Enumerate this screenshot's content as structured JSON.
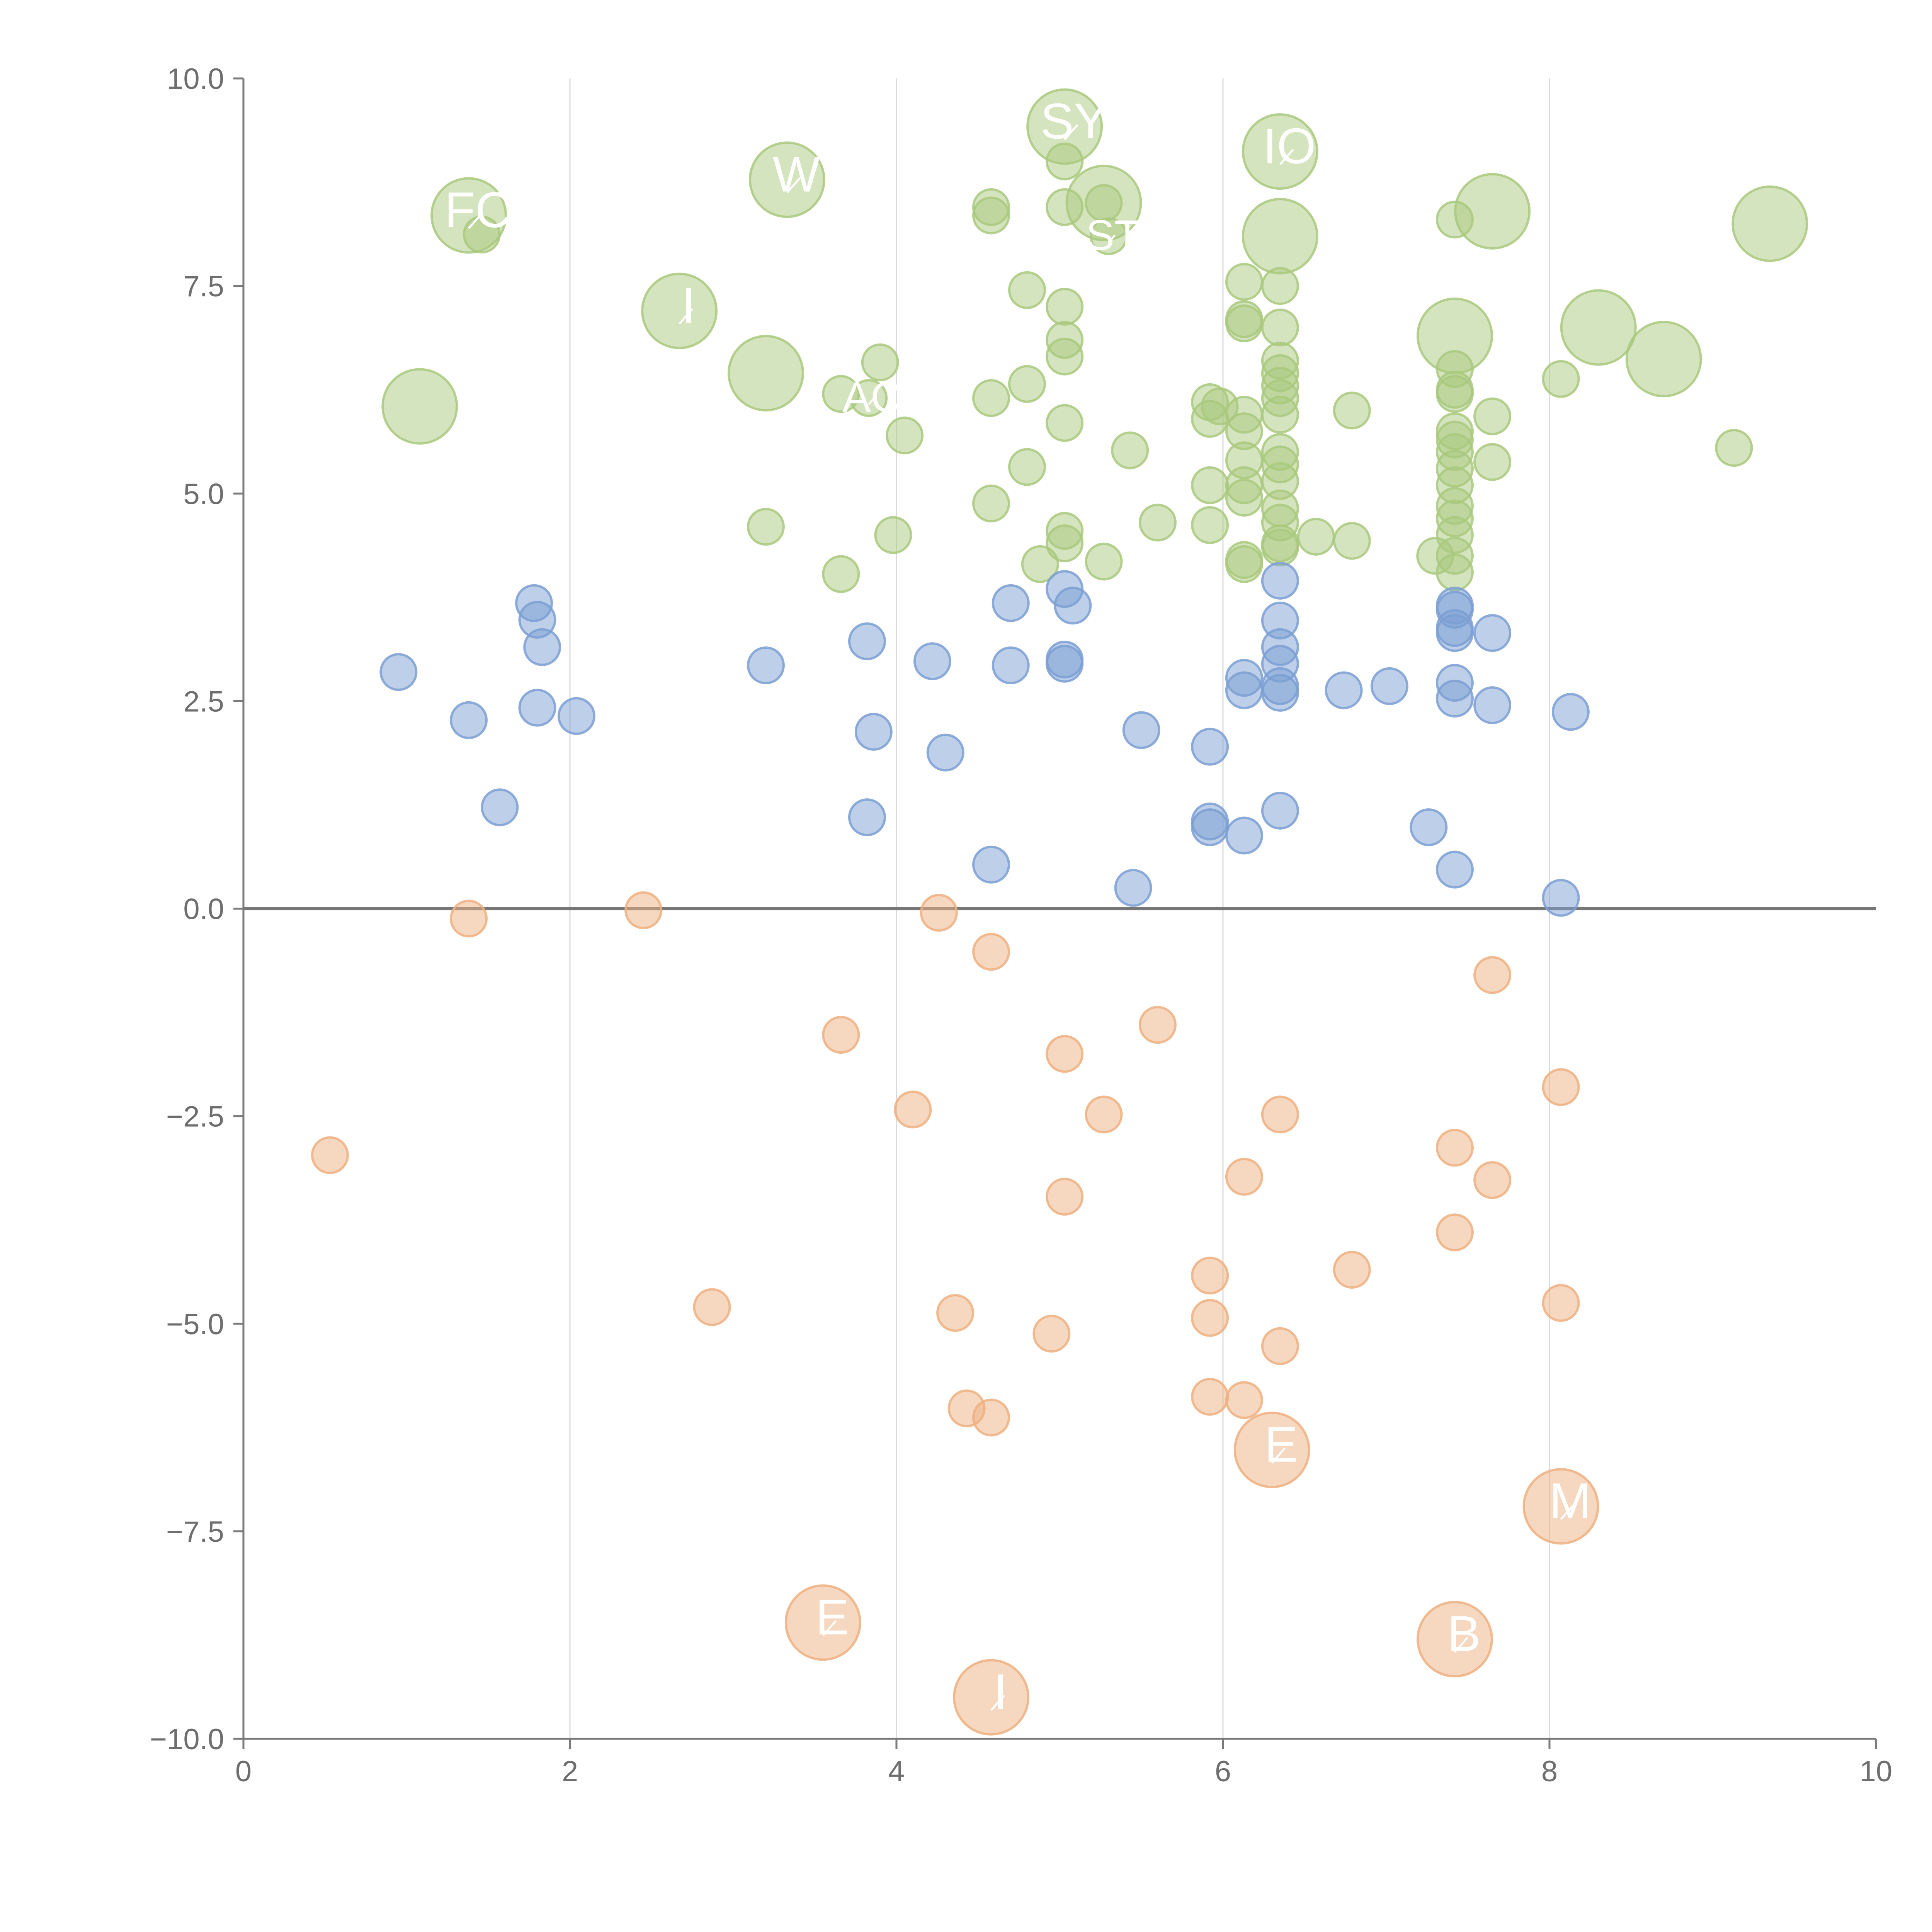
{
  "chart_data": {
    "type": "scatter",
    "title": "",
    "xlabel": "",
    "ylabel": "",
    "xlim": [
      0,
      10
    ],
    "ylim": [
      -10,
      10
    ],
    "xticks": [
      "0",
      "2",
      "4",
      "6",
      "8",
      "10"
    ],
    "yticks": [
      "−10.0",
      "−7.5",
      "−5.0",
      "−2.5",
      "0.0",
      "2.5",
      "5.0",
      "7.5",
      "10.0"
    ],
    "grid": "vertical lines at x = 2, 4, 6, 8",
    "reference_line": 0,
    "colors": {
      "high": "#a9c97e",
      "mid": "#7b9fd4",
      "low": "#eeb080"
    },
    "series": [
      {
        "group": "high",
        "color": "#a9c97e",
        "points": [
          [
            1.38,
            8.35,
            "l",
            "FC"
          ],
          [
            1.46,
            8.12,
            "s",
            ""
          ],
          [
            3.33,
            8.78,
            "l",
            "W"
          ],
          [
            2.67,
            7.2,
            "l",
            "I"
          ],
          [
            1.08,
            6.05,
            "l",
            ""
          ],
          [
            3.2,
            6.45,
            "l",
            ""
          ],
          [
            5.03,
            9.42,
            "l",
            "SY"
          ],
          [
            5.03,
            9.0,
            "s",
            ""
          ],
          [
            5.27,
            8.5,
            "l",
            ""
          ],
          [
            5.27,
            8.5,
            "s",
            ""
          ],
          [
            5.03,
            8.45,
            "s",
            ""
          ],
          [
            4.58,
            8.45,
            "s",
            ""
          ],
          [
            4.58,
            8.35,
            "s",
            ""
          ],
          [
            6.35,
            9.12,
            "l",
            "IO"
          ],
          [
            6.35,
            8.1,
            "l",
            ""
          ],
          [
            5.3,
            8.1,
            "s",
            "ST"
          ],
          [
            7.65,
            8.4,
            "l",
            ""
          ],
          [
            7.42,
            8.3,
            "s",
            ""
          ],
          [
            9.35,
            8.25,
            "l",
            ""
          ],
          [
            7.42,
            6.9,
            "l",
            ""
          ],
          [
            8.3,
            7.0,
            "l",
            ""
          ],
          [
            8.7,
            6.62,
            "l",
            ""
          ],
          [
            4.8,
            7.45,
            "s",
            ""
          ],
          [
            5.03,
            7.25,
            "s",
            ""
          ],
          [
            5.03,
            6.85,
            "s",
            ""
          ],
          [
            5.03,
            6.65,
            "s",
            ""
          ],
          [
            3.9,
            6.58,
            "s",
            ""
          ],
          [
            3.66,
            6.2,
            "s",
            ""
          ],
          [
            3.83,
            6.15,
            "s",
            "AO"
          ],
          [
            4.05,
            5.7,
            "s",
            ""
          ],
          [
            4.58,
            6.15,
            "s",
            ""
          ],
          [
            4.8,
            6.32,
            "s",
            ""
          ],
          [
            5.03,
            5.85,
            "s",
            ""
          ],
          [
            5.43,
            5.52,
            "s",
            ""
          ],
          [
            4.8,
            5.32,
            "s",
            ""
          ],
          [
            4.58,
            4.88,
            "s",
            ""
          ],
          [
            3.2,
            4.6,
            "s",
            ""
          ],
          [
            3.98,
            4.5,
            "s",
            ""
          ],
          [
            3.66,
            4.03,
            "s",
            ""
          ],
          [
            4.88,
            4.15,
            "s",
            ""
          ],
          [
            5.03,
            4.55,
            "s",
            ""
          ],
          [
            5.03,
            4.4,
            "s",
            ""
          ],
          [
            5.27,
            4.18,
            "s",
            ""
          ],
          [
            5.6,
            4.65,
            "s",
            ""
          ],
          [
            6.13,
            7.55,
            "s",
            ""
          ],
          [
            6.35,
            7.5,
            "s",
            ""
          ],
          [
            6.13,
            7.1,
            "s",
            ""
          ],
          [
            6.13,
            7.05,
            "s",
            ""
          ],
          [
            6.35,
            7.0,
            "s",
            ""
          ],
          [
            6.35,
            6.6,
            "s",
            ""
          ],
          [
            6.35,
            6.45,
            "s",
            ""
          ],
          [
            6.35,
            6.3,
            "s",
            ""
          ],
          [
            6.35,
            6.15,
            "s",
            ""
          ],
          [
            5.92,
            6.1,
            "s",
            ""
          ],
          [
            5.98,
            6.05,
            "s",
            ""
          ],
          [
            6.13,
            5.95,
            "s",
            ""
          ],
          [
            6.35,
            5.95,
            "s",
            ""
          ],
          [
            5.92,
            5.9,
            "s",
            ""
          ],
          [
            6.13,
            5.75,
            "s",
            ""
          ],
          [
            6.35,
            5.5,
            "s",
            ""
          ],
          [
            6.13,
            5.4,
            "s",
            ""
          ],
          [
            6.35,
            5.35,
            "s",
            ""
          ],
          [
            5.92,
            5.1,
            "s",
            ""
          ],
          [
            6.13,
            5.1,
            "s",
            ""
          ],
          [
            6.35,
            5.15,
            "s",
            ""
          ],
          [
            6.13,
            4.95,
            "s",
            ""
          ],
          [
            6.35,
            4.82,
            "s",
            ""
          ],
          [
            6.35,
            4.65,
            "s",
            ""
          ],
          [
            5.92,
            4.62,
            "s",
            ""
          ],
          [
            6.35,
            4.4,
            "s",
            ""
          ],
          [
            6.35,
            4.35,
            "s",
            ""
          ],
          [
            6.13,
            4.2,
            "s",
            ""
          ],
          [
            6.13,
            4.15,
            "s",
            ""
          ],
          [
            6.57,
            4.48,
            "s",
            ""
          ],
          [
            6.79,
            4.43,
            "s",
            ""
          ],
          [
            6.79,
            6.0,
            "s",
            ""
          ],
          [
            7.42,
            6.5,
            "s",
            ""
          ],
          [
            7.42,
            6.25,
            "s",
            ""
          ],
          [
            7.42,
            6.2,
            "s",
            ""
          ],
          [
            7.42,
            5.75,
            "s",
            ""
          ],
          [
            7.42,
            5.65,
            "s",
            ""
          ],
          [
            7.42,
            5.5,
            "s",
            ""
          ],
          [
            7.42,
            5.3,
            "s",
            ""
          ],
          [
            7.42,
            5.1,
            "s",
            ""
          ],
          [
            7.42,
            4.85,
            "s",
            ""
          ],
          [
            7.42,
            4.7,
            "s",
            ""
          ],
          [
            7.42,
            4.5,
            "s",
            ""
          ],
          [
            7.3,
            4.25,
            "s",
            ""
          ],
          [
            7.42,
            4.25,
            "s",
            ""
          ],
          [
            7.42,
            4.05,
            "s",
            ""
          ],
          [
            7.65,
            5.93,
            "s",
            ""
          ],
          [
            7.65,
            5.38,
            "s",
            ""
          ],
          [
            8.07,
            6.38,
            "s",
            ""
          ],
          [
            9.13,
            5.55,
            "s",
            ""
          ]
        ]
      },
      {
        "group": "mid",
        "color": "#7b9fd4",
        "points": [
          [
            1.78,
            3.68,
            "s",
            ""
          ],
          [
            1.8,
            3.48,
            "s",
            ""
          ],
          [
            1.83,
            3.15,
            "s",
            ""
          ],
          [
            0.95,
            2.85,
            "s",
            ""
          ],
          [
            1.38,
            2.27,
            "s",
            ""
          ],
          [
            1.8,
            2.42,
            "s",
            ""
          ],
          [
            2.04,
            2.32,
            "s",
            ""
          ],
          [
            1.57,
            1.22,
            "s",
            ""
          ],
          [
            3.2,
            2.93,
            "s",
            ""
          ],
          [
            3.82,
            3.22,
            "s",
            ""
          ],
          [
            3.86,
            2.13,
            "s",
            ""
          ],
          [
            3.82,
            1.1,
            "s",
            ""
          ],
          [
            4.22,
            2.98,
            "s",
            ""
          ],
          [
            4.3,
            1.88,
            "s",
            ""
          ],
          [
            4.7,
            3.68,
            "s",
            ""
          ],
          [
            4.7,
            2.93,
            "s",
            ""
          ],
          [
            5.03,
            3.85,
            "s",
            ""
          ],
          [
            5.08,
            3.65,
            "s",
            ""
          ],
          [
            5.03,
            3.0,
            "s",
            ""
          ],
          [
            5.03,
            2.95,
            "s",
            ""
          ],
          [
            5.5,
            2.15,
            "s",
            ""
          ],
          [
            4.58,
            0.53,
            "s",
            ""
          ],
          [
            5.45,
            0.25,
            "s",
            ""
          ],
          [
            5.92,
            1.95,
            "s",
            ""
          ],
          [
            5.92,
            1.05,
            "s",
            ""
          ],
          [
            5.92,
            0.98,
            "s",
            ""
          ],
          [
            6.13,
            0.88,
            "s",
            ""
          ],
          [
            6.35,
            1.18,
            "s",
            ""
          ],
          [
            6.35,
            3.95,
            "s",
            ""
          ],
          [
            6.35,
            3.47,
            "s",
            ""
          ],
          [
            6.35,
            3.15,
            "s",
            ""
          ],
          [
            6.35,
            2.95,
            "s",
            ""
          ],
          [
            6.13,
            2.78,
            "s",
            ""
          ],
          [
            6.13,
            2.63,
            "s",
            ""
          ],
          [
            6.35,
            2.68,
            "s",
            ""
          ],
          [
            6.35,
            2.6,
            "s",
            ""
          ],
          [
            6.74,
            2.63,
            "s",
            ""
          ],
          [
            7.02,
            2.68,
            "s",
            ""
          ],
          [
            7.42,
            3.65,
            "s",
            ""
          ],
          [
            7.42,
            3.6,
            "s",
            ""
          ],
          [
            7.42,
            3.38,
            "s",
            ""
          ],
          [
            7.42,
            3.32,
            "s",
            ""
          ],
          [
            7.65,
            3.32,
            "s",
            ""
          ],
          [
            7.42,
            2.72,
            "s",
            ""
          ],
          [
            7.42,
            2.53,
            "s",
            ""
          ],
          [
            7.65,
            2.45,
            "s",
            ""
          ],
          [
            8.13,
            2.37,
            "s",
            ""
          ],
          [
            7.26,
            0.98,
            "s",
            ""
          ],
          [
            7.42,
            0.47,
            "s",
            ""
          ],
          [
            8.07,
            0.13,
            "s",
            ""
          ]
        ]
      },
      {
        "group": "low",
        "color": "#eeb080",
        "points": [
          [
            1.38,
            -0.12,
            "s",
            ""
          ],
          [
            2.45,
            -0.02,
            "s",
            ""
          ],
          [
            4.26,
            -0.05,
            "s",
            ""
          ],
          [
            4.58,
            -0.52,
            "s",
            ""
          ],
          [
            7.65,
            -0.8,
            "s",
            ""
          ],
          [
            3.66,
            -1.52,
            "s",
            ""
          ],
          [
            5.03,
            -1.75,
            "s",
            ""
          ],
          [
            5.6,
            -1.4,
            "s",
            ""
          ],
          [
            4.1,
            -2.42,
            "s",
            ""
          ],
          [
            5.27,
            -2.48,
            "s",
            ""
          ],
          [
            6.35,
            -2.48,
            "s",
            ""
          ],
          [
            8.07,
            -2.15,
            "s",
            ""
          ],
          [
            0.53,
            -2.97,
            "s",
            ""
          ],
          [
            7.42,
            -2.88,
            "s",
            ""
          ],
          [
            6.13,
            -3.23,
            "s",
            ""
          ],
          [
            7.65,
            -3.27,
            "s",
            ""
          ],
          [
            5.03,
            -3.47,
            "s",
            ""
          ],
          [
            7.42,
            -3.9,
            "s",
            ""
          ],
          [
            6.79,
            -4.35,
            "s",
            ""
          ],
          [
            5.92,
            -4.42,
            "s",
            ""
          ],
          [
            2.87,
            -4.8,
            "s",
            ""
          ],
          [
            4.36,
            -4.87,
            "s",
            ""
          ],
          [
            5.92,
            -4.93,
            "s",
            ""
          ],
          [
            4.95,
            -5.12,
            "s",
            ""
          ],
          [
            8.07,
            -4.75,
            "s",
            ""
          ],
          [
            6.35,
            -5.27,
            "s",
            ""
          ],
          [
            5.92,
            -5.88,
            "s",
            ""
          ],
          [
            6.13,
            -5.92,
            "s",
            ""
          ],
          [
            4.43,
            -6.02,
            "s",
            ""
          ],
          [
            4.58,
            -6.13,
            "s",
            ""
          ],
          [
            6.3,
            -6.52,
            "l",
            "E"
          ],
          [
            8.07,
            -7.2,
            "l",
            "M"
          ],
          [
            3.55,
            -8.6,
            "l",
            "E"
          ],
          [
            7.42,
            -8.8,
            "l",
            "B"
          ],
          [
            4.58,
            -9.5,
            "l",
            "I"
          ]
        ]
      }
    ]
  }
}
